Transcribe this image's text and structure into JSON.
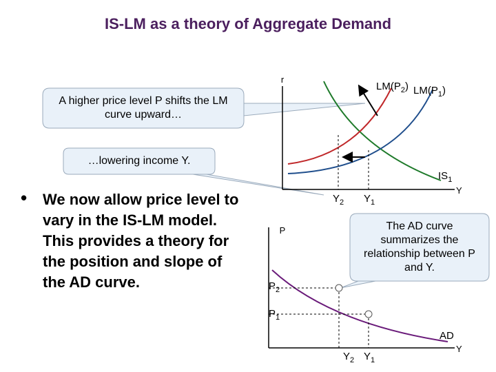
{
  "title": "IS-LM as a theory of Aggregate Demand",
  "callouts": [
    "A higher price level P shifts the LM curve upward…",
    "…lowering income Y.",
    "The AD curve summarizes the relationship between P and Y."
  ],
  "bullet": "We now allow price level to vary in the IS-LM model. This provides a theory for the position and slope of the AD curve.",
  "top_graph": {
    "y_axis": "r",
    "x_axis": "Y",
    "lm2": {
      "text": "LM(P",
      "sub": "2",
      "close": ")"
    },
    "lm1": {
      "text": "LM(P",
      "sub": "1",
      "close": ")"
    },
    "is": {
      "text": "IS",
      "sub": "1"
    },
    "x_ticks": [
      {
        "text": "Y",
        "sub": "2"
      },
      {
        "text": "Y",
        "sub": "1"
      }
    ]
  },
  "bottom_graph": {
    "y_axis": "P",
    "x_axis": "Y",
    "curve": "AD",
    "y_ticks": [
      {
        "text": "P",
        "sub": "2"
      },
      {
        "text": "P",
        "sub": "1"
      }
    ],
    "x_ticks": [
      {
        "text": "Y",
        "sub": "2"
      },
      {
        "text": "Y",
        "sub": "1"
      }
    ]
  }
}
